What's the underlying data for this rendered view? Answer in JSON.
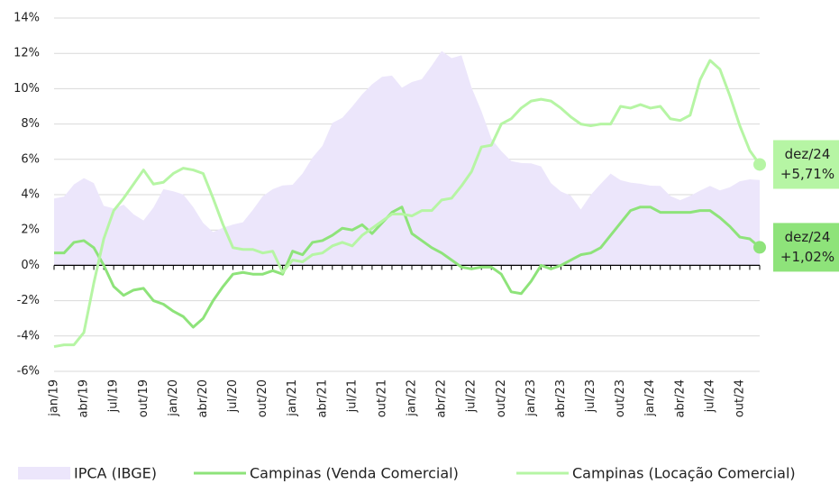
{
  "chart_data": {
    "type": "line",
    "categories": [
      "jan/19",
      null,
      null,
      "abr/19",
      null,
      null,
      "jul/19",
      null,
      null,
      "out/19",
      null,
      null,
      "jan/20",
      null,
      null,
      "abr/20",
      null,
      null,
      "jul/20",
      null,
      null,
      "out/20",
      null,
      null,
      "jan/21",
      null,
      null,
      "abr/21",
      null,
      null,
      "jul/21",
      null,
      null,
      "out/21",
      null,
      null,
      "jan/22",
      null,
      null,
      "abr/22",
      null,
      null,
      "jul/22",
      null,
      null,
      "out/22",
      null,
      null,
      "jan/23",
      null,
      null,
      "abr/23",
      null,
      null,
      "jul/23",
      null,
      null,
      "out/23",
      null,
      null,
      "jan/24",
      null,
      null,
      "abr/24",
      null,
      null,
      "jul/24",
      null,
      null,
      "out/24",
      null,
      null
    ],
    "series": [
      {
        "name": "IPCA (IBGE)",
        "style": "area",
        "color": "#ece6fb",
        "values": [
          3.78,
          3.89,
          4.58,
          4.94,
          4.66,
          3.37,
          3.22,
          3.43,
          2.89,
          2.54,
          3.27,
          4.31,
          4.19,
          4.01,
          3.3,
          2.4,
          1.88,
          2.13,
          2.31,
          2.44,
          3.14,
          3.92,
          4.31,
          4.52,
          4.56,
          5.2,
          6.1,
          6.76,
          8.06,
          8.35,
          8.99,
          9.68,
          10.25,
          10.67,
          10.74,
          10.06,
          10.38,
          10.54,
          11.3,
          12.13,
          11.73,
          11.89,
          10.07,
          8.73,
          7.17,
          6.47,
          5.9,
          5.79,
          5.77,
          5.6,
          4.65,
          4.18,
          3.94,
          3.16,
          3.99,
          4.61,
          5.19,
          4.82,
          4.68,
          4.62,
          4.51,
          4.5,
          3.93,
          3.69,
          3.93,
          4.23,
          4.5,
          4.24,
          4.42,
          4.76,
          4.87,
          4.83
        ]
      },
      {
        "name": "Campinas (Venda Comercial)",
        "style": "line",
        "color": "#8ee37a",
        "end_label": [
          "dez/24",
          "+1,02%"
        ],
        "values": [
          0.7,
          0.7,
          1.3,
          1.4,
          1.0,
          0.0,
          -1.2,
          -1.7,
          -1.4,
          -1.3,
          -2.0,
          -2.2,
          -2.6,
          -2.9,
          -3.5,
          -3.0,
          -2.0,
          -1.2,
          -0.5,
          -0.4,
          -0.5,
          -0.5,
          -0.3,
          -0.5,
          0.8,
          0.6,
          1.3,
          1.4,
          1.7,
          2.1,
          2.0,
          2.3,
          1.8,
          2.4,
          3.0,
          3.3,
          1.8,
          1.4,
          1.0,
          0.7,
          0.3,
          -0.1,
          -0.2,
          -0.1,
          -0.1,
          -0.5,
          -1.5,
          -1.6,
          -0.9,
          0.0,
          -0.2,
          0.0,
          0.3,
          0.6,
          0.7,
          1.0,
          1.7,
          2.4,
          3.1,
          3.3,
          3.3,
          3.0,
          3.0,
          3.0,
          3.0,
          3.1,
          3.1,
          2.7,
          2.2,
          1.6,
          1.5,
          1.02
        ]
      },
      {
        "name": "Campinas (Locação Comercial)",
        "style": "line",
        "color": "#b6f5a4",
        "end_label": [
          "dez/24",
          "+5,71%"
        ],
        "values": [
          -4.6,
          -4.5,
          -4.5,
          -3.8,
          -1.0,
          1.5,
          3.1,
          3.8,
          4.6,
          5.4,
          4.6,
          4.7,
          5.2,
          5.5,
          5.4,
          5.2,
          3.8,
          2.3,
          1.0,
          0.9,
          0.9,
          0.7,
          0.8,
          -0.4,
          0.3,
          0.2,
          0.6,
          0.7,
          1.1,
          1.3,
          1.1,
          1.7,
          2.1,
          2.5,
          2.9,
          2.9,
          2.8,
          3.1,
          3.1,
          3.7,
          3.8,
          4.5,
          5.3,
          6.7,
          6.8,
          8.0,
          8.3,
          8.9,
          9.3,
          9.4,
          9.3,
          8.9,
          8.4,
          8.0,
          7.9,
          8.0,
          8.0,
          9.0,
          8.9,
          9.1,
          8.9,
          9.0,
          8.3,
          8.2,
          8.5,
          10.5,
          11.6,
          11.1,
          9.6,
          7.9,
          6.5,
          5.71
        ]
      }
    ],
    "ylim": [
      -6,
      14
    ],
    "yticks": [
      {
        "value": -6,
        "label": "-6%"
      },
      {
        "value": -4,
        "label": "-4%"
      },
      {
        "value": -2,
        "label": "-2%"
      },
      {
        "value": 0,
        "label": "0%"
      },
      {
        "value": 2,
        "label": "2%"
      },
      {
        "value": 4,
        "label": "4%"
      },
      {
        "value": 6,
        "label": "6%"
      },
      {
        "value": 8,
        "label": "8%"
      },
      {
        "value": 10,
        "label": "10%"
      },
      {
        "value": 12,
        "label": "12%"
      },
      {
        "value": 14,
        "label": "14%"
      }
    ],
    "grid": true
  }
}
